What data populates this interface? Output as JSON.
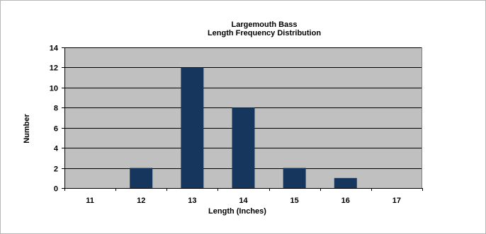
{
  "chart_data": {
    "type": "bar",
    "title": "Largemouth Bass",
    "subtitle": "Length Frequency Distribution",
    "xlabel": "Length (Inches)",
    "ylabel": "Number",
    "categories": [
      "11",
      "12",
      "13",
      "14",
      "15",
      "16",
      "17"
    ],
    "values": [
      0,
      2,
      12,
      8,
      2,
      1,
      0
    ],
    "ylim": [
      0,
      14
    ],
    "yticks": [
      0,
      2,
      4,
      6,
      8,
      10,
      12,
      14
    ],
    "grid": true,
    "legend": "none",
    "colors": {
      "bar": "#17365d",
      "plot_background": "#c0c0c0",
      "gridline": "#000000"
    }
  }
}
